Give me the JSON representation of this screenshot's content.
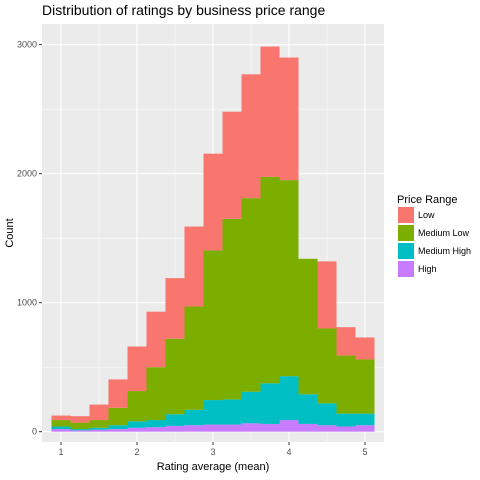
{
  "chart_data": {
    "type": "bar",
    "stacked": true,
    "title": "Distribution of ratings by business price range",
    "xlabel": "Rating average (mean)",
    "ylabel": "Count",
    "xlim": [
      0.75,
      5.25
    ],
    "ylim": [
      -80,
      3160
    ],
    "xticks": [
      1,
      2,
      3,
      4,
      5
    ],
    "yticks": [
      0,
      1000,
      2000,
      3000
    ],
    "grid": true,
    "legend_position": "right",
    "legend_title": "Price Range",
    "bin_width": 0.25,
    "x": [
      1.0,
      1.25,
      1.5,
      1.75,
      2.0,
      2.25,
      2.5,
      2.75,
      3.0,
      3.25,
      3.5,
      3.75,
      4.0,
      4.25,
      4.5,
      4.75,
      5.0
    ],
    "series": [
      {
        "name": "High",
        "color": "#C77CFF",
        "values": [
          20,
          10,
          15,
          20,
          30,
          35,
          45,
          50,
          55,
          55,
          65,
          60,
          90,
          60,
          50,
          40,
          50
        ]
      },
      {
        "name": "Medium High",
        "color": "#00BFC4",
        "values": [
          20,
          10,
          15,
          30,
          50,
          55,
          90,
          120,
          190,
          195,
          245,
          315,
          340,
          230,
          170,
          100,
          90
        ]
      },
      {
        "name": "Medium Low",
        "color": "#7CAE00",
        "values": [
          50,
          50,
          60,
          135,
          235,
          410,
          585,
          800,
          1160,
          1400,
          1500,
          1600,
          1520,
          1050,
          580,
          450,
          420
        ]
      },
      {
        "name": "Low",
        "color": "#F8766D",
        "values": [
          35,
          50,
          120,
          220,
          345,
          430,
          470,
          620,
          750,
          830,
          960,
          1010,
          950,
          0,
          520,
          220,
          170
        ]
      }
    ]
  }
}
